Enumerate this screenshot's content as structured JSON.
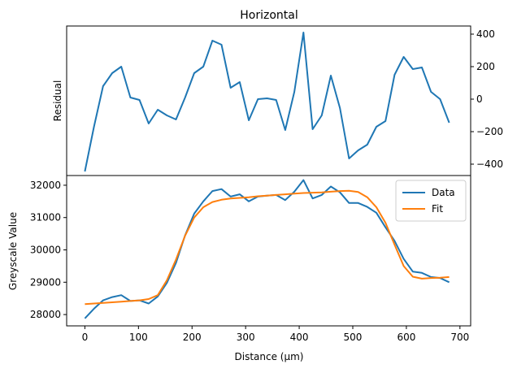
{
  "chart_data": [
    {
      "type": "line",
      "title": "Horizontal",
      "xlabel": "",
      "ylabel": "Residual",
      "yaxis_side": "right",
      "xlim": [
        -34,
        720
      ],
      "ylim": [
        -470,
        450
      ],
      "yticks": [
        400,
        200,
        0,
        -200,
        -400
      ],
      "grid": false,
      "series": [
        {
          "color": "#1f77b4",
          "x": [
            0,
            17,
            34,
            51,
            68,
            85,
            102,
            119,
            136,
            153,
            170,
            187,
            204,
            221,
            238,
            255,
            272,
            289,
            306,
            323,
            340,
            357,
            374,
            391,
            408,
            425,
            442,
            459,
            476,
            493,
            510,
            527,
            544,
            561,
            578,
            595,
            612,
            629,
            646,
            663,
            680
          ],
          "values": [
            -445,
            -170,
            80,
            160,
            200,
            10,
            -5,
            -150,
            -65,
            -100,
            -125,
            10,
            160,
            200,
            360,
            335,
            70,
            105,
            -130,
            0,
            5,
            -5,
            -190,
            45,
            410,
            -185,
            -100,
            145,
            -55,
            -365,
            -315,
            -280,
            -170,
            -135,
            150,
            260,
            185,
            195,
            45,
            0,
            -145
          ]
        }
      ]
    },
    {
      "type": "line",
      "title": "",
      "xlabel": "Distance (μm)",
      "ylabel": "Greyscale Value",
      "xlim": [
        -34,
        720
      ],
      "ylim": [
        27650,
        32300
      ],
      "xticks": [
        0,
        100,
        200,
        300,
        400,
        500,
        600,
        700
      ],
      "yticks": [
        28000,
        29000,
        30000,
        31000,
        32000
      ],
      "grid": false,
      "legend": "top-right",
      "series": [
        {
          "name": "Data",
          "color": "#1f77b4",
          "x": [
            0,
            17,
            34,
            51,
            68,
            85,
            102,
            119,
            136,
            153,
            170,
            187,
            204,
            221,
            238,
            255,
            272,
            289,
            306,
            323,
            340,
            357,
            374,
            391,
            408,
            425,
            442,
            459,
            476,
            493,
            510,
            527,
            544,
            561,
            578,
            595,
            612,
            629,
            646,
            663,
            680
          ],
          "values": [
            27880,
            28180,
            28440,
            28540,
            28600,
            28420,
            28440,
            28340,
            28560,
            28980,
            29600,
            30450,
            31120,
            31500,
            31820,
            31880,
            31650,
            31720,
            31500,
            31650,
            31680,
            31700,
            31540,
            31800,
            32160,
            31590,
            31700,
            31960,
            31780,
            31450,
            31450,
            31330,
            31150,
            30700,
            30280,
            29720,
            29330,
            29290,
            29160,
            29130,
            29000
          ]
        },
        {
          "name": "Fit",
          "color": "#ff7f0e",
          "x": [
            0,
            17,
            34,
            51,
            68,
            85,
            102,
            119,
            136,
            153,
            170,
            187,
            204,
            221,
            238,
            255,
            272,
            289,
            306,
            323,
            340,
            357,
            374,
            391,
            408,
            425,
            442,
            459,
            476,
            493,
            510,
            527,
            544,
            561,
            578,
            595,
            612,
            629,
            646,
            663,
            680
          ],
          "values": [
            28320,
            28340,
            28360,
            28380,
            28400,
            28420,
            28440,
            28480,
            28600,
            29060,
            29700,
            30440,
            31000,
            31320,
            31480,
            31550,
            31590,
            31610,
            31630,
            31660,
            31680,
            31700,
            31720,
            31740,
            31760,
            31770,
            31780,
            31800,
            31820,
            31830,
            31790,
            31630,
            31320,
            30840,
            30160,
            29500,
            29170,
            29110,
            29130,
            29140,
            29160
          ]
        }
      ]
    }
  ]
}
